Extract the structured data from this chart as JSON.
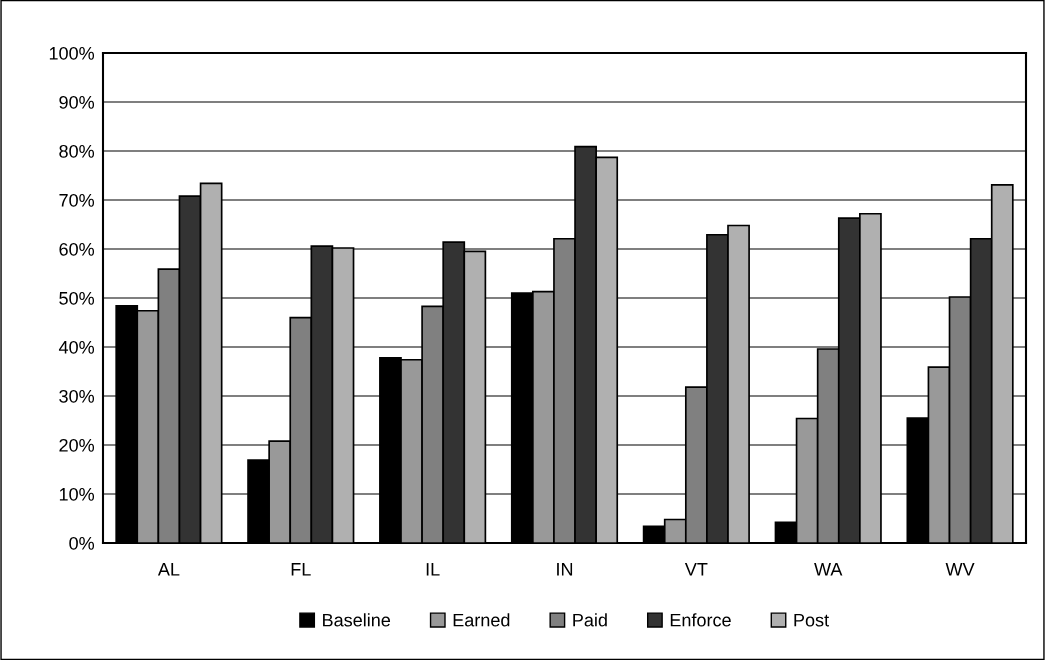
{
  "chart_data": {
    "type": "bar",
    "categories": [
      "AL",
      "FL",
      "IL",
      "IN",
      "VT",
      "WA",
      "WV"
    ],
    "series": [
      {
        "name": "Baseline",
        "color": "#000000",
        "values": [
          48.4,
          16.9,
          37.8,
          51.0,
          3.4,
          4.2,
          25.5
        ]
      },
      {
        "name": "Earned",
        "color": "#999999",
        "values": [
          47.4,
          20.8,
          37.4,
          51.3,
          4.8,
          25.4,
          35.9
        ]
      },
      {
        "name": "Paid",
        "color": "#808080",
        "values": [
          55.9,
          46.0,
          48.3,
          62.1,
          31.8,
          39.6,
          50.2
        ]
      },
      {
        "name": "Enforce",
        "color": "#333333",
        "values": [
          70.8,
          60.6,
          61.4,
          80.9,
          62.9,
          66.3,
          62.1
        ]
      },
      {
        "name": "Post",
        "color": "#b0b0b0",
        "values": [
          73.4,
          60.2,
          59.5,
          78.7,
          64.8,
          67.2,
          73.1
        ]
      }
    ],
    "ylim": [
      0,
      100
    ],
    "yticks": [
      {
        "value": 0,
        "label": "0%"
      },
      {
        "value": 10,
        "label": "10%"
      },
      {
        "value": 20,
        "label": "20%"
      },
      {
        "value": 30,
        "label": "30%"
      },
      {
        "value": 40,
        "label": "40%"
      },
      {
        "value": 50,
        "label": "50%"
      },
      {
        "value": 60,
        "label": "60%"
      },
      {
        "value": 70,
        "label": "70%"
      },
      {
        "value": 80,
        "label": "80%"
      },
      {
        "value": 90,
        "label": "90%"
      },
      {
        "value": 100,
        "label": "100%"
      }
    ],
    "grid": "y",
    "legend": "bottom"
  }
}
